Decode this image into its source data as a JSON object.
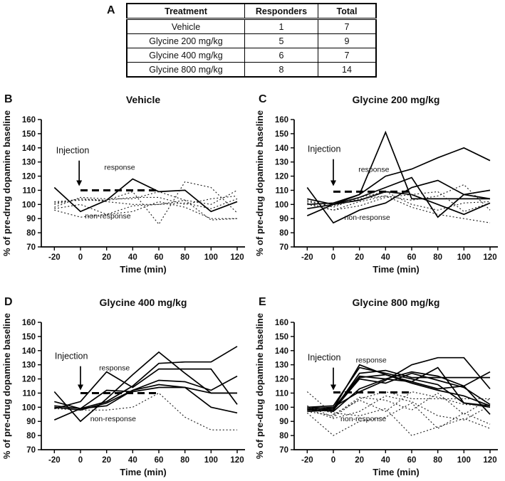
{
  "figure": {
    "panel_a_label": "A",
    "table": {
      "headers": [
        "Treatment",
        "Responders",
        "Total"
      ],
      "rows": [
        [
          "Vehicle",
          "1",
          "7"
        ],
        [
          "Glycine 200 mg/kg",
          "5",
          "9"
        ],
        [
          "Glycine 400 mg/kg",
          "6",
          "7"
        ],
        [
          "Glycine 800 mg/kg",
          "8",
          "14"
        ]
      ]
    },
    "ink_color": "#000000",
    "background_color": "#ffffff"
  },
  "chart_data": [
    {
      "type": "line",
      "panel": "B",
      "title": "Vehicle",
      "xlabel": "Time (min)",
      "ylabel": "% of pre-drug dopamine baseline",
      "x": [
        -20,
        0,
        20,
        40,
        60,
        80,
        100,
        120
      ],
      "xlim": [
        -30,
        126
      ],
      "ylim": [
        70,
        160
      ],
      "yticks": [
        70,
        80,
        90,
        100,
        110,
        120,
        130,
        140,
        150,
        160
      ],
      "grid": false,
      "legend": "none",
      "dashed_baseline": {
        "y": 110,
        "x_start": 0,
        "x_end": 58
      },
      "annotations": {
        "injection": {
          "label": "Injection",
          "text_x": -6,
          "text_y": 136,
          "arrow_x": -1,
          "arrow_top": 131,
          "arrow_tip": 113
        },
        "response": {
          "label": "response",
          "x": 30,
          "y": 124.5
        },
        "non_response": {
          "label": "non-response",
          "x": 21,
          "y": 90
        }
      },
      "series": [
        {
          "name": "responder-1",
          "role": "responder",
          "style": "solid",
          "values": [
            112,
            95,
            103,
            118,
            109,
            110,
            95,
            102
          ]
        },
        {
          "name": "non-responder-1",
          "role": "non-responder",
          "style": "dotted",
          "values": [
            96,
            91,
            93,
            99,
            100,
            103,
            89,
            90
          ]
        },
        {
          "name": "non-responder-2",
          "role": "non-responder",
          "style": "dotted",
          "values": [
            100,
            104,
            103,
            109,
            86,
            116,
            112,
            94
          ]
        },
        {
          "name": "non-responder-3",
          "role": "non-responder",
          "style": "dotted",
          "values": [
            98,
            105,
            104,
            104,
            109,
            103,
            100,
            110
          ]
        },
        {
          "name": "non-responder-4",
          "role": "non-responder",
          "style": "dotted",
          "values": [
            102,
            103,
            103,
            105,
            105,
            100,
            104,
            106
          ]
        },
        {
          "name": "non-responder-5",
          "role": "non-responder",
          "style": "dotted",
          "values": [
            101,
            104,
            102,
            100,
            100,
            101,
            97,
            104
          ]
        },
        {
          "name": "non-responder-6",
          "role": "non-responder",
          "style": "dotted",
          "values": [
            97,
            100,
            93,
            95,
            102,
            98,
            90,
            90
          ]
        }
      ]
    },
    {
      "type": "line",
      "panel": "C",
      "title": "Glycine 200 mg/kg",
      "xlabel": "Time (min)",
      "ylabel": "% of pre-drug dopamine baseline",
      "x": [
        -20,
        0,
        20,
        40,
        60,
        80,
        100,
        120
      ],
      "xlim": [
        -30,
        126
      ],
      "ylim": [
        70,
        160
      ],
      "yticks": [
        70,
        80,
        90,
        100,
        110,
        120,
        130,
        140,
        150,
        160
      ],
      "grid": false,
      "legend": "none",
      "dashed_baseline": {
        "y": 109,
        "x_start": 0,
        "x_end": 58
      },
      "annotations": {
        "injection": {
          "label": "Injection",
          "text_x": -7,
          "text_y": 137,
          "arrow_x": 0,
          "arrow_top": 132,
          "arrow_tip": 113
        },
        "response": {
          "label": "response",
          "x": 31,
          "y": 123
        },
        "non_response": {
          "label": "non-response",
          "x": 26,
          "y": 89
        }
      },
      "series": [
        {
          "name": "responder-1",
          "role": "responder",
          "style": "solid",
          "values": [
            100,
            101,
            107,
            151,
            104,
            104,
            104,
            104
          ]
        },
        {
          "name": "responder-2",
          "role": "responder",
          "style": "solid",
          "values": [
            97,
            100,
            107,
            120,
            125,
            133,
            140,
            131
          ]
        },
        {
          "name": "responder-3",
          "role": "responder",
          "style": "solid",
          "values": [
            104,
            100,
            105,
            112,
            119,
            91,
            107,
            110
          ]
        },
        {
          "name": "responder-4",
          "role": "responder",
          "style": "solid",
          "values": [
            112,
            87,
            96,
            101,
            112,
            117,
            107,
            104
          ]
        },
        {
          "name": "responder-5",
          "role": "responder",
          "style": "solid",
          "values": [
            92,
            100,
            103,
            109,
            107,
            100,
            93,
            101
          ]
        },
        {
          "name": "non-responder-1",
          "role": "non-responder",
          "style": "dotted",
          "values": [
            101,
            96,
            102,
            106,
            103,
            106,
            114,
            96
          ]
        },
        {
          "name": "non-responder-2",
          "role": "non-responder",
          "style": "dotted",
          "values": [
            103,
            98,
            105,
            109,
            100,
            96,
            101,
            102
          ]
        },
        {
          "name": "non-responder-3",
          "role": "non-responder",
          "style": "dotted",
          "values": [
            100,
            96,
            99,
            105,
            107,
            109,
            95,
            101
          ]
        },
        {
          "name": "non-responder-4",
          "role": "non-responder",
          "style": "dotted",
          "values": [
            102,
            99,
            104,
            106,
            98,
            93,
            90,
            87
          ]
        }
      ]
    },
    {
      "type": "line",
      "panel": "D",
      "title": "Glycine 400 mg/kg",
      "xlabel": "Time (min)",
      "ylabel": "% of pre-drug dopamine baseline",
      "x": [
        -20,
        0,
        20,
        40,
        60,
        80,
        100,
        120
      ],
      "xlim": [
        -30,
        126
      ],
      "ylim": [
        70,
        160
      ],
      "yticks": [
        70,
        80,
        90,
        100,
        110,
        120,
        130,
        140,
        150,
        160
      ],
      "grid": false,
      "legend": "none",
      "dashed_baseline": {
        "y": 110,
        "x_start": 0,
        "x_end": 58
      },
      "annotations": {
        "injection": {
          "label": "Injection",
          "text_x": -7,
          "text_y": 134,
          "arrow_x": 0,
          "arrow_top": 129,
          "arrow_tip": 112
        },
        "response": {
          "label": "response",
          "x": 26,
          "y": 126
        },
        "non_response": {
          "label": "non-response",
          "x": 25,
          "y": 90
        }
      },
      "series": [
        {
          "name": "responder-1",
          "role": "responder",
          "style": "solid",
          "values": [
            101,
            99,
            104,
            115,
            131,
            132,
            132,
            143
          ]
        },
        {
          "name": "responder-2",
          "role": "responder",
          "style": "solid",
          "values": [
            111,
            90,
            106,
            123,
            139,
            124,
            110,
            110
          ]
        },
        {
          "name": "responder-3",
          "role": "responder",
          "style": "solid",
          "values": [
            99,
            104,
            125,
            114,
            127,
            127,
            127,
            102
          ]
        },
        {
          "name": "responder-4",
          "role": "responder",
          "style": "solid",
          "values": [
            104,
            99,
            101,
            112,
            119,
            118,
            112,
            122
          ]
        },
        {
          "name": "responder-5",
          "role": "responder",
          "style": "solid",
          "values": [
            100,
            98,
            103,
            112,
            116,
            114,
            100,
            96
          ]
        },
        {
          "name": "responder-6",
          "role": "responder",
          "style": "solid",
          "values": [
            91,
            99,
            112,
            111,
            114,
            114,
            110,
            110
          ]
        },
        {
          "name": "non-responder-1",
          "role": "non-responder",
          "style": "dotted",
          "values": [
            99,
            98,
            98,
            100,
            110,
            93,
            84,
            84
          ]
        }
      ]
    },
    {
      "type": "line",
      "panel": "E",
      "title": "Glycine 800 mg/kg",
      "xlabel": "Time (min)",
      "ylabel": "% of pre-drug dopamine baseline",
      "x": [
        -20,
        0,
        20,
        40,
        60,
        80,
        100,
        120
      ],
      "xlim": [
        -30,
        126
      ],
      "ylim": [
        70,
        160
      ],
      "yticks": [
        70,
        80,
        90,
        100,
        110,
        120,
        130,
        140,
        150,
        160
      ],
      "grid": false,
      "legend": "none",
      "dashed_baseline": {
        "y": 110.5,
        "x_start": 0,
        "x_end": 58
      },
      "annotations": {
        "injection": {
          "label": "Injection",
          "text_x": -7,
          "text_y": 133,
          "arrow_x": 0,
          "arrow_top": 128,
          "arrow_tip": 112
        },
        "response": {
          "label": "response",
          "x": 29,
          "y": 131.5
        },
        "non_response": {
          "label": "non-response",
          "x": 23,
          "y": 90
        }
      },
      "series": [
        {
          "name": "responder-1",
          "role": "responder",
          "style": "solid",
          "values": [
            99,
            100,
            111,
            119,
            130,
            135,
            135,
            113
          ]
        },
        {
          "name": "responder-2",
          "role": "responder",
          "style": "solid",
          "values": [
            98,
            99,
            130,
            123,
            118,
            128,
            103,
            101
          ]
        },
        {
          "name": "responder-3",
          "role": "responder",
          "style": "solid",
          "values": [
            99,
            98,
            124,
            126,
            121,
            121,
            121,
            121
          ]
        },
        {
          "name": "responder-4",
          "role": "responder",
          "style": "solid",
          "values": [
            100,
            99,
            122,
            120,
            125,
            122,
            115,
            125
          ]
        },
        {
          "name": "responder-5",
          "role": "responder",
          "style": "solid",
          "values": [
            98,
            98,
            121,
            123,
            117,
            112,
            108,
            101
          ]
        },
        {
          "name": "responder-6",
          "role": "responder",
          "style": "solid",
          "values": [
            99,
            97,
            113,
            120,
            118,
            113,
            115,
            95
          ]
        },
        {
          "name": "responder-7",
          "role": "responder",
          "style": "solid",
          "values": [
            97,
            98,
            120,
            117,
            124,
            119,
            114,
            102
          ]
        },
        {
          "name": "responder-8",
          "role": "responder",
          "style": "solid",
          "values": [
            100,
            101,
            128,
            124,
            120,
            116,
            103,
            100
          ]
        },
        {
          "name": "non-responder-1",
          "role": "non-responder",
          "style": "dotted",
          "values": [
            101,
            93,
            106,
            111,
            106,
            106,
            106,
            106
          ]
        },
        {
          "name": "non-responder-2",
          "role": "non-responder",
          "style": "dotted",
          "values": [
            111,
            95,
            105,
            97,
            111,
            107,
            102,
            101
          ]
        },
        {
          "name": "non-responder-3",
          "role": "non-responder",
          "style": "dotted",
          "values": [
            97,
            94,
            107,
            105,
            98,
            110,
            95,
            106
          ]
        },
        {
          "name": "non-responder-4",
          "role": "non-responder",
          "style": "dotted",
          "values": [
            99,
            92,
            97,
            108,
            104,
            94,
            91,
            101
          ]
        },
        {
          "name": "non-responder-5",
          "role": "non-responder",
          "style": "dotted",
          "values": [
            96,
            80,
            90,
            93,
            103,
            85,
            96,
            88
          ]
        },
        {
          "name": "non-responder-6",
          "role": "non-responder",
          "style": "dotted",
          "values": [
            100,
            96,
            94,
            99,
            80,
            86,
            92,
            85
          ]
        }
      ]
    }
  ]
}
